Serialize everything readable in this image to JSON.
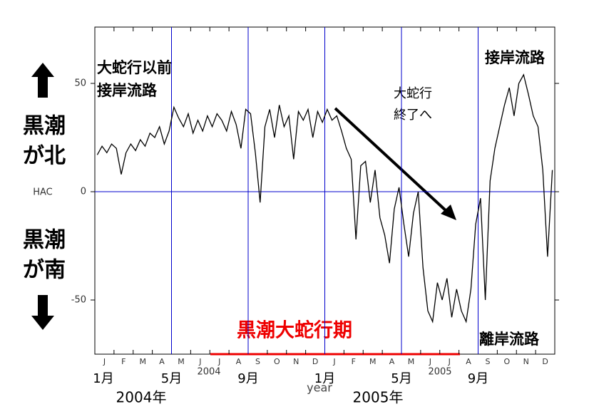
{
  "chart_data": {
    "type": "line",
    "y_label": "HAC",
    "x_label": "year",
    "ylim": [
      -75,
      76
    ],
    "yticks": [
      -50,
      0,
      50
    ],
    "line_color": "#0000cc",
    "month_letters": [
      "J",
      "F",
      "M",
      "A",
      "M",
      "J",
      "J",
      "A",
      "S",
      "O",
      "N",
      "D",
      "J",
      "F",
      "M",
      "A",
      "M",
      "J",
      "J",
      "A",
      "S",
      "O",
      "N",
      "D"
    ],
    "month_labels": [
      "1月",
      "5月",
      "9月",
      "1月",
      "5月",
      "9月"
    ],
    "year_labels": [
      "2004年",
      "2005年"
    ],
    "axis_years": [
      "2004",
      "2005"
    ],
    "series": [
      {
        "color": "#000000",
        "values": [
          17,
          21,
          18,
          22,
          20,
          8,
          18,
          22,
          19,
          24,
          21,
          27,
          25,
          30,
          22,
          28,
          39,
          34,
          30,
          36,
          27,
          33,
          28,
          35,
          30,
          36,
          33,
          28,
          37,
          31,
          20,
          38,
          36,
          18,
          -5,
          30,
          38,
          25,
          40,
          30,
          35,
          15,
          37,
          33,
          38,
          25,
          37,
          32,
          38,
          33,
          35,
          28,
          20,
          15,
          -22,
          12,
          14,
          -5,
          10,
          -12,
          -20,
          -33,
          -8,
          2,
          -15,
          -30,
          -10,
          0,
          -35,
          -55,
          -60,
          -42,
          -50,
          -40,
          -58,
          -45,
          -55,
          -60,
          -45,
          -15,
          -3,
          -50,
          5,
          20,
          30,
          40,
          48,
          35,
          50,
          54,
          45,
          35,
          30,
          10,
          -30,
          10
        ]
      }
    ],
    "annotations": {
      "before_1": "大蛇行以前",
      "before_2": "接岸流路",
      "end_1": "大蛇行",
      "end_2": "終了へ",
      "near_shore": "接岸流路",
      "offshore": "離岸流路",
      "period": "黒潮大蛇行期",
      "north_1": "黒潮",
      "north_2": "が北",
      "south_1": "黒潮",
      "south_2": "が南"
    }
  }
}
